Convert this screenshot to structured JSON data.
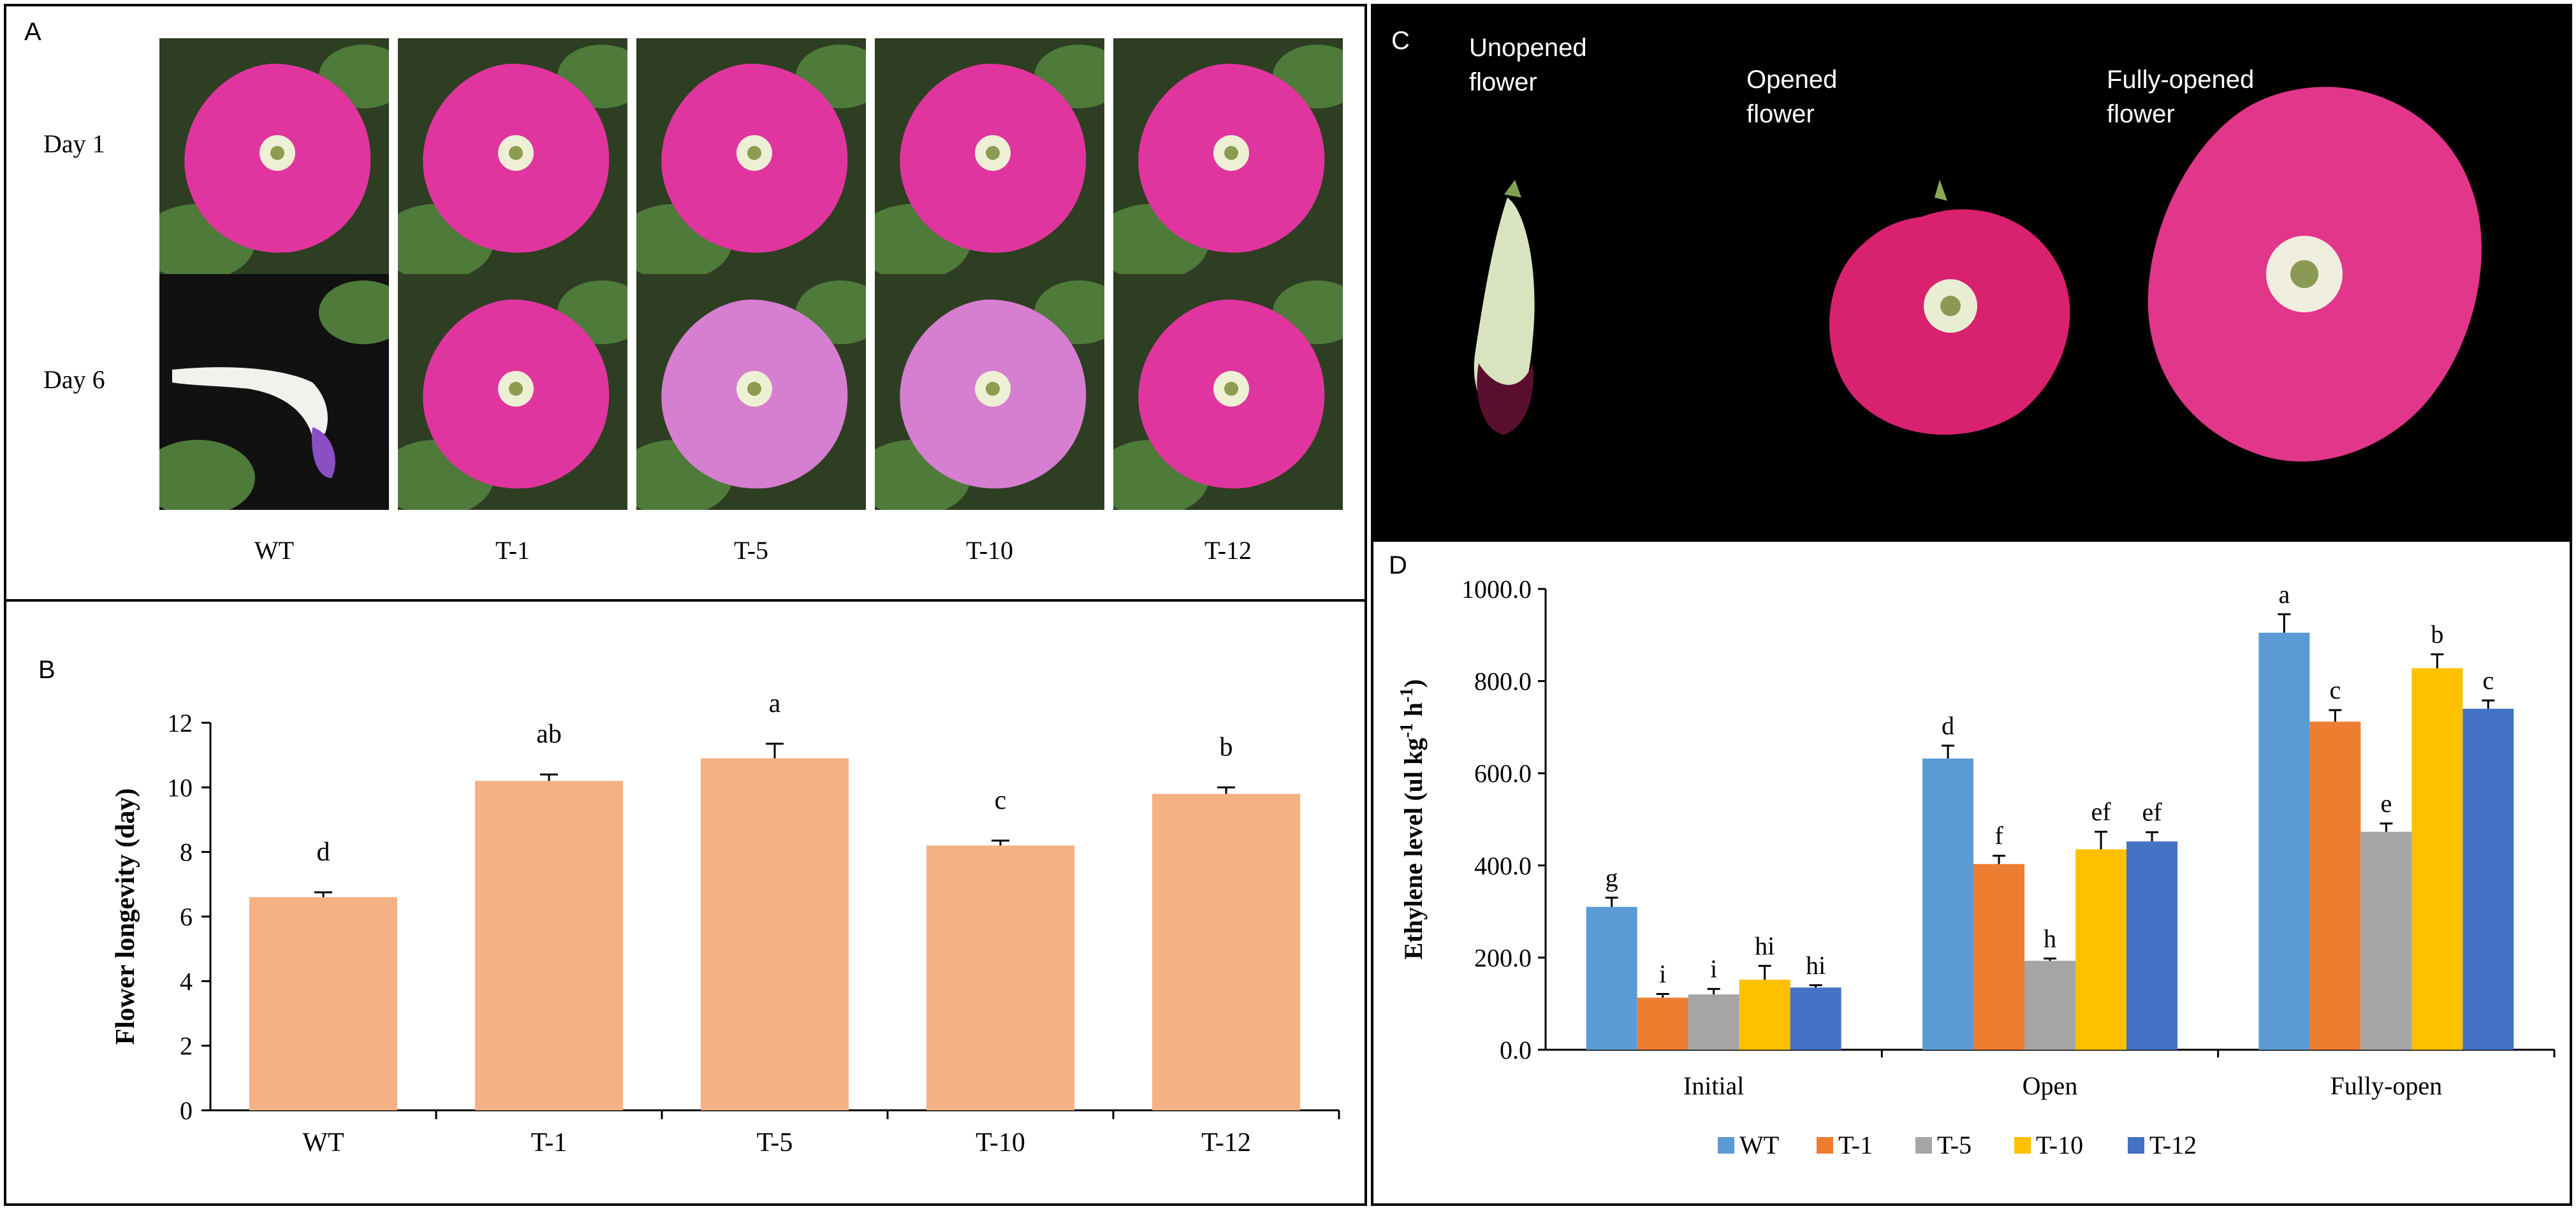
{
  "panel_a": {
    "letter": "A",
    "rows": [
      "Day 1",
      "Day 6"
    ],
    "columns": [
      "WT",
      "T-1",
      "T-5",
      "T-10",
      "T-12"
    ]
  },
  "panel_c": {
    "letter": "C",
    "stages": [
      "Unopened\nflower",
      "Opened\nflower",
      "Fully-opened\nflower"
    ]
  },
  "colors": {
    "bar_b": "#F4B183",
    "WT": "#5B9BD5",
    "T-1": "#ED7D31",
    "T-5": "#A5A5A5",
    "T-10": "#FFC000",
    "T-12": "#4472C4",
    "petal": "#E0359E",
    "leaf": "#4E7A3A"
  },
  "chart_data": [
    {
      "panel": "B",
      "type": "bar",
      "title": "",
      "xlabel": "",
      "ylabel": "Flower longevity (day)",
      "categories": [
        "WT",
        "T-1",
        "T-5",
        "T-10",
        "T-12"
      ],
      "values": [
        6.6,
        10.2,
        10.9,
        8.2,
        9.8
      ],
      "errors": [
        0.15,
        0.2,
        0.45,
        0.15,
        0.2
      ],
      "labels": [
        "d",
        "ab",
        "a",
        "c",
        "b"
      ],
      "ylim": [
        0,
        12
      ],
      "yticks": [
        "0",
        "2",
        "4",
        "6",
        "8",
        "10",
        "12"
      ],
      "grid": false,
      "legend": "none"
    },
    {
      "panel": "D",
      "type": "bar",
      "title": "",
      "xlabel": "",
      "ylabel": "Ethylene level (ul kg-1 h-1)",
      "ylabel_parts": [
        "Ethylene level (ul kg",
        "-1",
        " h",
        "-1",
        ")"
      ],
      "categories": [
        "Initial",
        "Open",
        "Fully-open"
      ],
      "ylim": [
        0,
        1000
      ],
      "yticks": [
        "0.0",
        "200.0",
        "400.0",
        "600.0",
        "800.0",
        "1000.0"
      ],
      "grid": false,
      "legend": "bottom",
      "series": [
        {
          "name": "WT",
          "values": [
            310,
            632,
            905
          ],
          "errors": [
            20,
            28,
            40
          ],
          "labels": [
            "g",
            "d",
            "a"
          ]
        },
        {
          "name": "T-1",
          "values": [
            113,
            403,
            712
          ],
          "errors": [
            8,
            18,
            25
          ],
          "labels": [
            "i",
            "f",
            "c"
          ]
        },
        {
          "name": "T-5",
          "values": [
            120,
            193,
            473
          ],
          "errors": [
            12,
            5,
            18
          ],
          "labels": [
            "i",
            "h",
            "e"
          ]
        },
        {
          "name": "T-10",
          "values": [
            152,
            435,
            828
          ],
          "errors": [
            30,
            38,
            30
          ],
          "labels": [
            "hi",
            "ef",
            "b"
          ]
        },
        {
          "name": "T-12",
          "values": [
            135,
            452,
            740
          ],
          "errors": [
            5,
            20,
            18
          ],
          "labels": [
            "hi",
            "ef",
            "c"
          ]
        }
      ]
    }
  ]
}
